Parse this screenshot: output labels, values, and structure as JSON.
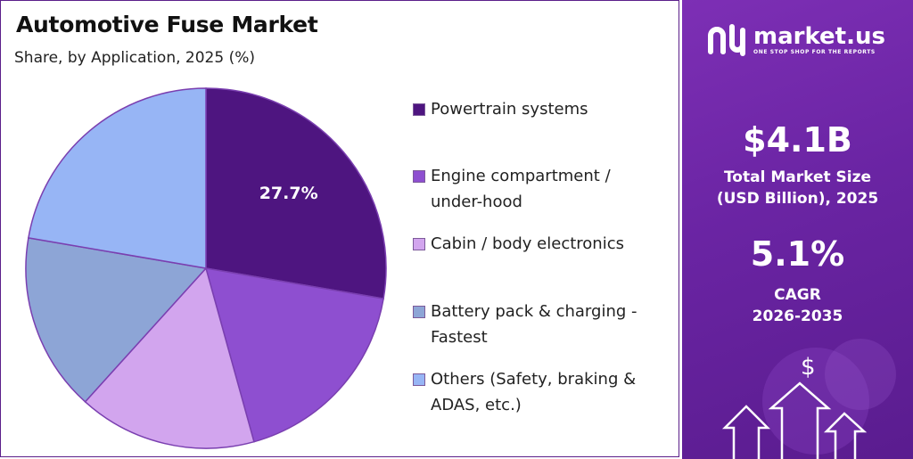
{
  "title": "Automotive Fuse Market",
  "subtitle": "Share, by Application, 2025 (%)",
  "chart_data": {
    "type": "pie",
    "title": "Automotive Fuse Market",
    "subtitle": "Share, by Application, 2025 (%)",
    "slices": [
      {
        "label": "Powertrain systems",
        "value": 27.7,
        "color": "#4e1580",
        "show_label": true
      },
      {
        "label": "Engine compartment / under-hood",
        "value": 18.0,
        "color": "#8e4fd0"
      },
      {
        "label": "Cabin / body electronics",
        "value": 16.0,
        "color": "#d2a5ee"
      },
      {
        "label": "Battery pack & charging - Fastest",
        "value": 16.0,
        "color": "#8da5d6"
      },
      {
        "label": "Others (Safety, braking & ADAS, etc.)",
        "value": 22.3,
        "color": "#97b5f5"
      }
    ],
    "slice_label_text": "27.7%",
    "legend_placement": "right"
  },
  "legend": [
    {
      "label": "Powertrain systems",
      "color": "#4e1580"
    },
    {
      "label": "Engine compartment /\nunder-hood",
      "color": "#8e4fd0"
    },
    {
      "label": "Cabin / body electronics",
      "color": "#d2a5ee"
    },
    {
      "label": "Battery pack & charging -\nFastest",
      "color": "#8da5d6"
    },
    {
      "label": "Others (Safety, braking &\nADAS, etc.)",
      "color": "#97b5f5"
    }
  ],
  "brand": {
    "name": "market.us",
    "tagline": "ONE STOP SHOP FOR THE REPORTS"
  },
  "stats": {
    "market_size_value": "$4.1B",
    "market_size_label_line1": "Total Market Size",
    "market_size_label_line2": "(USD Billion), 2025",
    "cagr_value": "5.1%",
    "cagr_label_line1": "CAGR",
    "cagr_label_line2": "2026-2035"
  },
  "icons": {
    "logo": "market-us-logo-icon",
    "dollar": "dollar-sign-icon",
    "arrows": "up-arrows-icon"
  },
  "colors": {
    "panel_purple": "#6a24a3",
    "border": "#5b1f8a"
  }
}
